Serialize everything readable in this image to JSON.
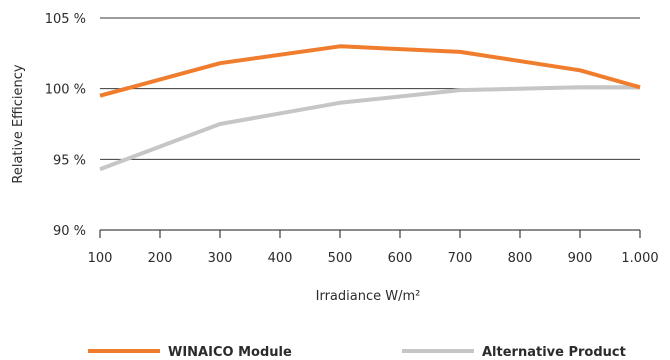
{
  "chart_data": {
    "type": "line",
    "title": "",
    "xlabel": "Irradiance W/m²",
    "ylabel": "Relative Efficiency",
    "x": [
      100,
      300,
      500,
      700,
      900,
      1000
    ],
    "xlim": [
      100,
      1000
    ],
    "ylim": [
      90,
      105
    ],
    "x_ticks": [
      100,
      200,
      300,
      400,
      500,
      600,
      700,
      800,
      900,
      1000
    ],
    "x_tick_labels": [
      "100",
      "200",
      "300",
      "400",
      "500",
      "600",
      "700",
      "800",
      "900",
      "1.000"
    ],
    "y_ticks": [
      90,
      95,
      100,
      105
    ],
    "y_tick_labels": [
      "90 %",
      "95 %",
      "100 %",
      "105 %"
    ],
    "grid": "horizontal",
    "legend_position": "bottom",
    "series": [
      {
        "name": "WINAICO Module",
        "color": "#ef7d2d",
        "values": [
          99.5,
          101.8,
          103.0,
          102.6,
          101.3,
          100.1
        ]
      },
      {
        "name": "Alternative Product",
        "color": "#c6c6c6",
        "values": [
          94.3,
          97.5,
          99.0,
          99.9,
          100.1,
          100.1
        ]
      }
    ]
  }
}
